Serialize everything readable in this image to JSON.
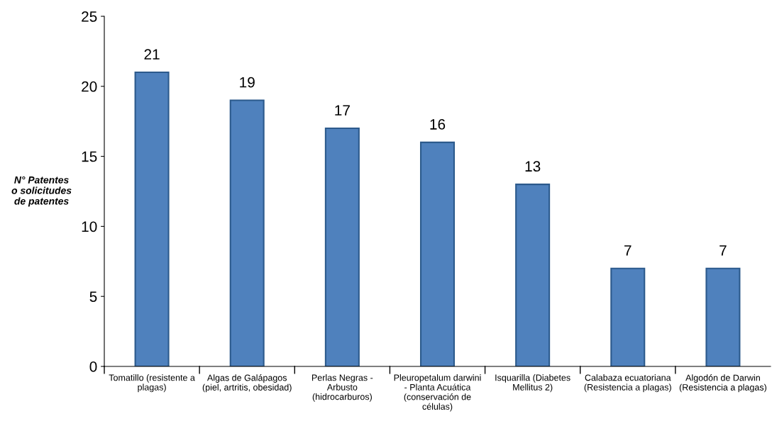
{
  "chart_data": {
    "type": "bar",
    "ylabel": "N° Patentes\no solicitudes\nde patentes",
    "categories": [
      "Tomatillo (resistente a\nplagas)",
      "Algas de Galápagos\n(piel, artritis, obesidad)",
      "Perlas Negras -\nArbusto\n(hidrocarburos)",
      "Pleuropetalum darwini\n- Planta Acuática\n(conservación de\ncélulas)",
      "Isquarilla (Diabetes\nMellitus 2)",
      "Calabaza ecuatoriana\n(Resistencia a plagas)",
      "Algodón de Darwin\n(Resistencia a plagas)"
    ],
    "values": [
      21,
      19,
      17,
      16,
      13,
      7,
      7
    ],
    "color": "#4f81bd",
    "ylim": [
      0,
      25
    ],
    "yticks": [
      0,
      5,
      10,
      15,
      20,
      25
    ],
    "data_labels": true,
    "grid": false,
    "legend": false
  }
}
